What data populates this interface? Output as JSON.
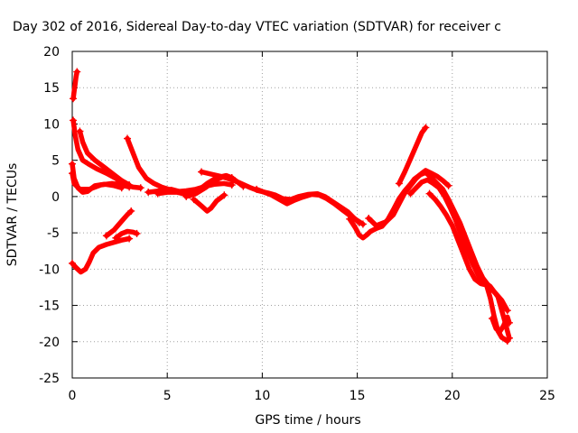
{
  "chart_data": {
    "type": "scatter",
    "title": "Day 302 of 2016, Sidereal Day-to-day VTEC variation (SDTVAR) for receiver c",
    "xlabel": "GPS time / hours",
    "ylabel": "SDTVAR / TECUs",
    "xlim": [
      0,
      25
    ],
    "ylim": [
      -25,
      20
    ],
    "xticks": [
      0,
      5,
      10,
      15,
      20,
      25
    ],
    "yticks": [
      -25,
      -20,
      -15,
      -10,
      -5,
      0,
      5,
      10,
      15,
      20
    ],
    "grid": true,
    "marker": "plus",
    "color": "#ff0000",
    "series": [
      {
        "points": [
          [
            0.05,
            13.5
          ],
          [
            0.1,
            14.5
          ],
          [
            0.15,
            15.5
          ],
          [
            0.2,
            16.5
          ],
          [
            0.25,
            17.2
          ]
        ]
      },
      {
        "points": [
          [
            0.05,
            10.5
          ],
          [
            0.15,
            8.5
          ],
          [
            0.3,
            6.5
          ],
          [
            0.55,
            5.0
          ],
          [
            0.85,
            4.5
          ],
          [
            1.3,
            3.8
          ],
          [
            1.8,
            3.2
          ],
          [
            2.3,
            2.5
          ],
          [
            2.7,
            1.7
          ],
          [
            3.2,
            1.3
          ],
          [
            3.6,
            1.2
          ]
        ]
      },
      {
        "points": [
          [
            0.0,
            4.5
          ],
          [
            0.1,
            2.5
          ],
          [
            0.3,
            1.2
          ],
          [
            0.55,
            0.6
          ],
          [
            0.8,
            0.7
          ],
          [
            1.2,
            1.5
          ],
          [
            1.7,
            1.7
          ],
          [
            2.2,
            1.5
          ],
          [
            2.6,
            1.2
          ]
        ]
      },
      {
        "points": [
          [
            0.0,
            3.2
          ],
          [
            0.1,
            1.8
          ],
          [
            0.4,
            1.0
          ],
          [
            0.9,
            1.0
          ],
          [
            1.5,
            1.6
          ],
          [
            2.1,
            1.8
          ],
          [
            2.6,
            1.6
          ],
          [
            3.0,
            1.3
          ]
        ]
      },
      {
        "points": [
          [
            0.4,
            9.0
          ],
          [
            0.55,
            7.5
          ],
          [
            0.8,
            6.0
          ],
          [
            1.2,
            5.0
          ],
          [
            1.7,
            4.0
          ],
          [
            2.2,
            3.0
          ],
          [
            2.6,
            2.2
          ],
          [
            3.0,
            1.6
          ]
        ]
      },
      {
        "points": [
          [
            0.0,
            -9.2
          ],
          [
            0.2,
            -9.8
          ],
          [
            0.45,
            -10.4
          ],
          [
            0.7,
            -10.0
          ],
          [
            0.9,
            -9.0
          ],
          [
            1.1,
            -7.8
          ],
          [
            1.4,
            -7.0
          ],
          [
            1.8,
            -6.6
          ],
          [
            2.2,
            -6.3
          ],
          [
            2.6,
            -6.0
          ],
          [
            3.0,
            -5.8
          ]
        ]
      },
      {
        "points": [
          [
            1.8,
            -5.4
          ],
          [
            2.2,
            -4.6
          ],
          [
            2.6,
            -3.4
          ],
          [
            2.9,
            -2.5
          ],
          [
            3.1,
            -2.0
          ]
        ]
      },
      {
        "points": [
          [
            2.3,
            -5.7
          ],
          [
            2.6,
            -5.1
          ],
          [
            2.9,
            -4.8
          ],
          [
            3.2,
            -4.9
          ],
          [
            3.4,
            -5.1
          ]
        ]
      },
      {
        "points": [
          [
            2.9,
            8.0
          ],
          [
            3.2,
            6.0
          ],
          [
            3.5,
            4.0
          ],
          [
            3.9,
            2.5
          ],
          [
            4.3,
            1.8
          ],
          [
            4.7,
            1.3
          ],
          [
            5.2,
            0.9
          ],
          [
            5.6,
            0.7
          ],
          [
            6.0,
            0.8
          ],
          [
            6.5,
            1.0
          ],
          [
            7.0,
            1.4
          ],
          [
            7.5,
            1.7
          ],
          [
            8.0,
            1.8
          ],
          [
            8.4,
            1.6
          ]
        ]
      },
      {
        "points": [
          [
            4.0,
            0.6
          ],
          [
            4.6,
            0.8
          ],
          [
            5.2,
            1.0
          ],
          [
            5.8,
            0.6
          ],
          [
            6.2,
            0.2
          ]
        ]
      },
      {
        "points": [
          [
            4.5,
            0.4
          ],
          [
            5.0,
            0.6
          ],
          [
            5.5,
            0.6
          ],
          [
            6.0,
            0.3
          ],
          [
            6.6,
            0.8
          ],
          [
            7.1,
            1.8
          ],
          [
            7.6,
            2.6
          ],
          [
            8.1,
            2.9
          ],
          [
            8.4,
            2.6
          ]
        ]
      },
      {
        "points": [
          [
            6.0,
            0.0
          ],
          [
            6.5,
            0.4
          ],
          [
            7.0,
            1.2
          ],
          [
            7.5,
            2.2
          ],
          [
            8.0,
            2.8
          ],
          [
            8.4,
            2.6
          ],
          [
            8.6,
            2.2
          ],
          [
            9.0,
            1.4
          ]
        ]
      },
      {
        "points": [
          [
            6.4,
            -0.4
          ],
          [
            6.8,
            -1.3
          ],
          [
            7.1,
            -2.0
          ],
          [
            7.3,
            -1.6
          ],
          [
            7.6,
            -0.6
          ],
          [
            8.0,
            0.2
          ]
        ]
      },
      {
        "points": [
          [
            6.8,
            3.4
          ],
          [
            7.3,
            3.1
          ],
          [
            7.8,
            2.8
          ],
          [
            8.3,
            2.4
          ],
          [
            8.8,
            1.9
          ],
          [
            9.3,
            1.3
          ],
          [
            9.8,
            0.8
          ],
          [
            10.3,
            0.5
          ],
          [
            10.7,
            0.2
          ],
          [
            11.1,
            -0.3
          ],
          [
            11.5,
            -0.4
          ],
          [
            11.9,
            0.0
          ],
          [
            12.4,
            0.3
          ],
          [
            12.9,
            0.4
          ],
          [
            13.3,
            0.0
          ],
          [
            13.7,
            -0.7
          ],
          [
            14.1,
            -1.4
          ],
          [
            14.5,
            -2.1
          ],
          [
            14.8,
            -2.9
          ],
          [
            15.1,
            -3.6
          ]
        ]
      },
      {
        "points": [
          [
            9.7,
            1.0
          ],
          [
            10.1,
            0.6
          ],
          [
            10.5,
            0.2
          ],
          [
            10.9,
            -0.4
          ],
          [
            11.3,
            -1.0
          ],
          [
            11.7,
            -0.5
          ],
          [
            12.1,
            -0.1
          ],
          [
            12.6,
            0.3
          ],
          [
            13.0,
            0.2
          ],
          [
            13.4,
            -0.3
          ],
          [
            13.8,
            -1.0
          ],
          [
            14.2,
            -1.8
          ],
          [
            14.6,
            -2.6
          ],
          [
            15.0,
            -3.3
          ],
          [
            15.3,
            -3.8
          ]
        ]
      },
      {
        "points": [
          [
            14.6,
            -3.1
          ],
          [
            14.9,
            -4.3
          ],
          [
            15.1,
            -5.3
          ],
          [
            15.3,
            -5.7
          ],
          [
            15.5,
            -5.3
          ],
          [
            15.7,
            -4.8
          ],
          [
            16.0,
            -4.4
          ],
          [
            16.3,
            -4.1
          ],
          [
            16.6,
            -3.2
          ],
          [
            16.9,
            -1.8
          ],
          [
            17.2,
            -0.3
          ],
          [
            17.5,
            0.8
          ],
          [
            17.8,
            1.7
          ],
          [
            18.0,
            2.4
          ],
          [
            18.3,
            3.0
          ],
          [
            18.6,
            3.3
          ],
          [
            18.9,
            2.6
          ],
          [
            19.2,
            1.8
          ],
          [
            19.5,
            1.0
          ],
          [
            19.8,
            -0.4
          ],
          [
            20.1,
            -2.0
          ],
          [
            20.4,
            -3.6
          ],
          [
            20.7,
            -5.6
          ],
          [
            21.0,
            -7.6
          ],
          [
            21.3,
            -9.6
          ],
          [
            21.6,
            -11.2
          ],
          [
            22.0,
            -12.6
          ],
          [
            22.3,
            -13.4
          ],
          [
            22.6,
            -14.3
          ],
          [
            22.9,
            -15.7
          ]
        ]
      },
      {
        "points": [
          [
            15.6,
            -3.0
          ],
          [
            16.0,
            -4.0
          ],
          [
            16.5,
            -3.5
          ],
          [
            16.9,
            -2.5
          ],
          [
            17.2,
            -1.0
          ],
          [
            17.5,
            0.5
          ],
          [
            17.8,
            1.5
          ],
          [
            18.1,
            2.5
          ],
          [
            18.4,
            3.2
          ],
          [
            18.6,
            3.6
          ],
          [
            18.9,
            3.2
          ],
          [
            19.2,
            2.8
          ],
          [
            19.5,
            2.2
          ],
          [
            19.8,
            1.5
          ]
        ]
      },
      {
        "points": [
          [
            17.2,
            1.8
          ],
          [
            17.5,
            3.4
          ],
          [
            17.8,
            5.2
          ],
          [
            18.1,
            7.0
          ],
          [
            18.4,
            8.8
          ],
          [
            18.6,
            9.5
          ]
        ]
      },
      {
        "points": [
          [
            17.8,
            0.4
          ],
          [
            18.1,
            1.2
          ],
          [
            18.4,
            2.0
          ],
          [
            18.7,
            2.3
          ],
          [
            19.0,
            1.8
          ],
          [
            19.3,
            1.2
          ],
          [
            19.6,
            0.0
          ],
          [
            19.9,
            -1.6
          ],
          [
            20.2,
            -3.4
          ],
          [
            20.5,
            -5.6
          ],
          [
            20.8,
            -7.6
          ],
          [
            21.1,
            -9.4
          ],
          [
            21.4,
            -11.0
          ],
          [
            21.7,
            -11.8
          ],
          [
            22.0,
            -12.4
          ],
          [
            22.4,
            -13.8
          ],
          [
            22.8,
            -17.5
          ],
          [
            23.0,
            -19.5
          ]
        ]
      },
      {
        "points": [
          [
            18.8,
            0.4
          ],
          [
            19.1,
            -0.4
          ],
          [
            19.4,
            -1.4
          ],
          [
            19.7,
            -2.6
          ],
          [
            20.0,
            -4.0
          ],
          [
            20.3,
            -6.0
          ],
          [
            20.6,
            -8.0
          ],
          [
            20.9,
            -10.0
          ],
          [
            21.2,
            -11.4
          ],
          [
            21.5,
            -12.0
          ],
          [
            21.8,
            -12.2
          ],
          [
            22.0,
            -14.0
          ],
          [
            22.2,
            -16.5
          ],
          [
            22.4,
            -18.5
          ],
          [
            22.6,
            -19.4
          ],
          [
            22.9,
            -19.9
          ]
        ]
      },
      {
        "points": [
          [
            22.1,
            -16.8
          ],
          [
            22.3,
            -18.2
          ],
          [
            22.5,
            -18.6
          ],
          [
            22.7,
            -17.8
          ],
          [
            22.9,
            -16.6
          ],
          [
            23.0,
            -17.4
          ]
        ]
      }
    ]
  }
}
